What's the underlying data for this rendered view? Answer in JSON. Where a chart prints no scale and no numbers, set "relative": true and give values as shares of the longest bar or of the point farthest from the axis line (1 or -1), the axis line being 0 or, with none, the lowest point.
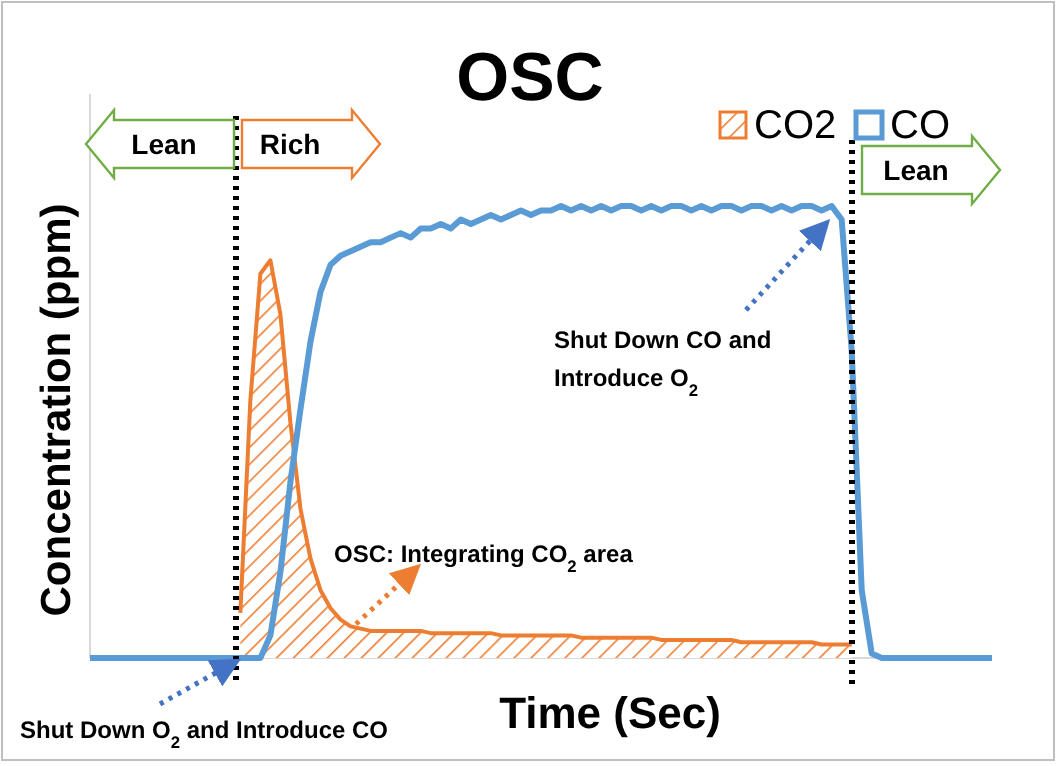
{
  "chart_data": {
    "type": "area",
    "title": "OSC",
    "xlabel": "Time (Sec)",
    "ylabel": "Concentration (ppm)",
    "relative": true,
    "legend": "top right",
    "grid": false,
    "categories": [
      null,
      null,
      null,
      null,
      null,
      null,
      null,
      null,
      null,
      null,
      null,
      null,
      null,
      null,
      null,
      null,
      null,
      null,
      null,
      null,
      null,
      null,
      null,
      null,
      null,
      null,
      null,
      null,
      null,
      null,
      null,
      null,
      null,
      null,
      null,
      null,
      null,
      null,
      null,
      null,
      null,
      null,
      null,
      null,
      null,
      null,
      null,
      null,
      null,
      null,
      null,
      null,
      null,
      null,
      null,
      null,
      null,
      null,
      null,
      null,
      null,
      null,
      null,
      null,
      null,
      null,
      null,
      null,
      null,
      null,
      null,
      null,
      null,
      null,
      null,
      null,
      null,
      null,
      null,
      null,
      null,
      null,
      null,
      null,
      null,
      null,
      null,
      null,
      null,
      null,
      null
    ],
    "series": [
      {
        "name": "CO2",
        "color": "#ed7d31",
        "values": [
          null,
          null,
          null,
          null,
          null,
          null,
          null,
          null,
          null,
          null,
          null,
          null,
          null,
          null,
          null,
          0.1,
          0.57,
          0.85,
          0.88,
          0.76,
          0.52,
          0.33,
          0.22,
          0.15,
          0.11,
          0.085,
          0.07,
          0.065,
          0.06,
          0.06,
          0.06,
          0.06,
          0.06,
          0.06,
          0.055,
          0.055,
          0.055,
          0.055,
          0.055,
          0.055,
          0.055,
          0.05,
          0.05,
          0.05,
          0.05,
          0.05,
          0.05,
          0.05,
          0.05,
          0.045,
          0.045,
          0.045,
          0.045,
          0.045,
          0.045,
          0.045,
          0.045,
          0.04,
          0.04,
          0.04,
          0.04,
          0.04,
          0.04,
          0.04,
          0.04,
          0.035,
          0.035,
          0.035,
          0.035,
          0.035,
          0.035,
          0.035,
          0.035,
          0.03,
          0.03,
          0.03,
          0.03,
          null,
          null,
          null,
          null,
          null,
          null,
          null,
          null,
          null,
          null,
          null,
          null,
          null,
          null
        ]
      },
      {
        "name": "CO",
        "type": "line",
        "color": "#5b9bd5",
        "values": [
          0,
          0,
          0,
          0,
          0,
          0,
          0,
          0,
          0,
          0,
          0,
          0,
          0,
          0,
          0,
          0,
          0,
          0,
          0.05,
          0.19,
          0.39,
          0.55,
          0.7,
          0.81,
          0.87,
          0.89,
          0.9,
          0.91,
          0.92,
          0.92,
          0.93,
          0.94,
          0.93,
          0.95,
          0.95,
          0.96,
          0.95,
          0.97,
          0.96,
          0.97,
          0.98,
          0.97,
          0.98,
          0.99,
          0.98,
          0.99,
          0.99,
          1,
          0.99,
          1,
          0.99,
          1,
          0.99,
          1,
          1,
          0.99,
          1,
          0.99,
          1,
          1,
          0.99,
          1,
          0.99,
          1,
          1,
          0.99,
          1,
          1,
          0.99,
          1,
          0.99,
          1,
          1,
          0.99,
          1,
          0.97,
          0.68,
          0.15,
          0.01,
          0,
          0,
          0,
          0,
          0,
          0,
          0,
          0,
          0,
          0,
          0,
          0
        ]
      }
    ],
    "annotations": [
      "Lean",
      "Rich",
      "Lean",
      "Shut Down CO and\nIntroduce O$_{2}$",
      "OSC: Integrating CO$_{2}$ area",
      "Shut Down O$_{2}$ and Introduce CO"
    ]
  }
}
